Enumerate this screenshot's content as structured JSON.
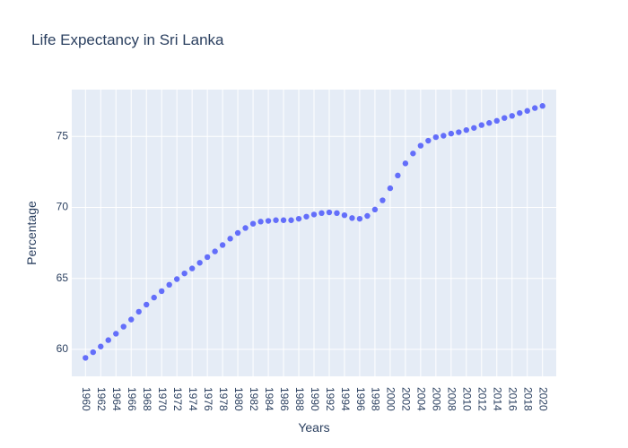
{
  "chart_data": {
    "type": "scatter",
    "title": "Life Expectancy in Sri Lanka",
    "xlabel": "Years",
    "ylabel": "Percentage",
    "xlim": [
      1958.2,
      2021.8
    ],
    "ylim": [
      58.1,
      78.3
    ],
    "grid": true,
    "x": [
      1960,
      1961,
      1962,
      1963,
      1964,
      1965,
      1966,
      1967,
      1968,
      1969,
      1970,
      1971,
      1972,
      1973,
      1974,
      1975,
      1976,
      1977,
      1978,
      1979,
      1980,
      1981,
      1982,
      1983,
      1984,
      1985,
      1986,
      1987,
      1988,
      1989,
      1990,
      1991,
      1992,
      1993,
      1994,
      1995,
      1996,
      1997,
      1998,
      1999,
      2000,
      2001,
      2002,
      2003,
      2004,
      2005,
      2006,
      2007,
      2008,
      2009,
      2010,
      2011,
      2012,
      2013,
      2014,
      2015,
      2016,
      2017,
      2018,
      2019,
      2020
    ],
    "y": [
      59.4,
      59.8,
      60.2,
      60.65,
      61.1,
      61.6,
      62.1,
      62.65,
      63.15,
      63.65,
      64.1,
      64.55,
      64.95,
      65.35,
      65.7,
      66.1,
      66.5,
      66.9,
      67.35,
      67.8,
      68.2,
      68.55,
      68.85,
      69.0,
      69.05,
      69.1,
      69.1,
      69.1,
      69.2,
      69.35,
      69.5,
      69.6,
      69.65,
      69.6,
      69.45,
      69.25,
      69.2,
      69.4,
      69.85,
      70.5,
      71.35,
      72.25,
      73.1,
      73.8,
      74.35,
      74.7,
      74.95,
      75.05,
      75.2,
      75.3,
      75.45,
      75.6,
      75.8,
      75.95,
      76.1,
      76.3,
      76.45,
      76.65,
      76.8,
      77.0,
      77.15
    ],
    "x_ticks": [
      "1960",
      "1962",
      "1964",
      "1966",
      "1968",
      "1970",
      "1972",
      "1974",
      "1976",
      "1978",
      "1980",
      "1982",
      "1984",
      "1986",
      "1988",
      "1990",
      "1992",
      "1994",
      "1996",
      "1998",
      "2000",
      "2002",
      "2004",
      "2006",
      "2008",
      "2010",
      "2012",
      "2014",
      "2016",
      "2018",
      "2020"
    ],
    "y_ticks": [
      "60",
      "65",
      "70",
      "75"
    ],
    "colors": {
      "marker": "#636efa",
      "plot_bg": "#e5ecf6",
      "grid": "#ffffff",
      "text": "#2a3f5f"
    }
  }
}
